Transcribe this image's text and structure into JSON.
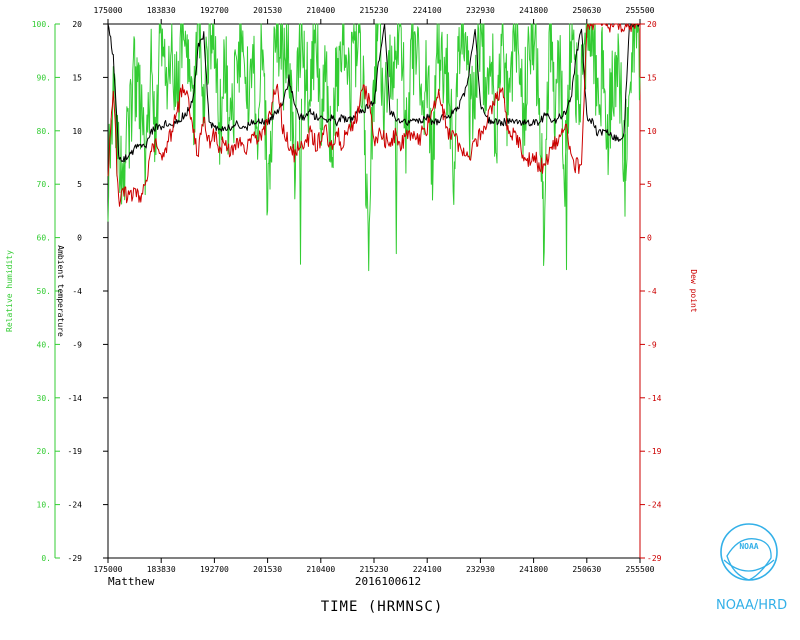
{
  "chart_data": {
    "type": "line",
    "storm_name": "Matthew",
    "date_label": "2016100612",
    "xlabel": "TIME (HRMNSC)",
    "x_ticks": [
      "175000",
      "183830",
      "192700",
      "201530",
      "210400",
      "215230",
      "224100",
      "232930",
      "241800",
      "250630",
      "255500"
    ],
    "xlim": [
      "175000",
      "255500"
    ],
    "axes": {
      "relative_humidity": {
        "label": "Relative humidity",
        "color": "#33cc33",
        "ticks": [
          "0.",
          "10.",
          "20.",
          "30.",
          "40.",
          "50.",
          "60.",
          "70.",
          "80.",
          "90.",
          "100."
        ],
        "range": [
          0,
          100
        ]
      },
      "ambient_temperature": {
        "label": "Ambient temperature",
        "color": "#000000",
        "ticks": [
          "-29",
          "-24",
          "-19",
          "-14",
          "-9",
          "-4",
          "0",
          "5",
          "10",
          "15",
          "20"
        ],
        "range": [
          -29,
          20
        ]
      },
      "dew_point": {
        "label": "Dew point",
        "color": "#cc0000",
        "ticks": [
          "-29",
          "-24",
          "-19",
          "-14",
          "-9",
          "-4",
          "0",
          "5",
          "10",
          "15",
          "20"
        ],
        "range": [
          -29,
          20
        ]
      }
    },
    "grid": false,
    "series": [
      {
        "name": "Relative humidity",
        "axis": "relative_humidity",
        "color": "#33cc33",
        "x_frac": [
          0,
          0.01,
          0.02,
          0.03,
          0.04,
          0.05,
          0.06,
          0.07,
          0.08,
          0.09,
          0.1,
          0.11,
          0.12,
          0.13,
          0.14,
          0.15,
          0.16,
          0.17,
          0.18,
          0.19,
          0.2,
          0.21,
          0.22,
          0.23,
          0.24,
          0.25,
          0.26,
          0.27,
          0.28,
          0.29,
          0.3,
          0.31,
          0.32,
          0.33,
          0.34,
          0.35,
          0.36,
          0.37,
          0.38,
          0.39,
          0.4,
          0.41,
          0.42,
          0.43,
          0.44,
          0.45,
          0.46,
          0.47,
          0.48,
          0.49,
          0.5,
          0.51,
          0.52,
          0.53,
          0.54,
          0.55,
          0.56,
          0.57,
          0.58,
          0.59,
          0.6,
          0.61,
          0.62,
          0.63,
          0.64,
          0.65,
          0.66,
          0.67,
          0.68,
          0.69,
          0.7,
          0.71,
          0.72,
          0.73,
          0.74,
          0.75,
          0.76,
          0.77,
          0.78,
          0.79,
          0.8,
          0.81,
          0.82,
          0.83,
          0.84,
          0.85,
          0.86,
          0.87,
          0.88,
          0.89,
          0.9,
          0.91,
          0.92,
          0.93,
          0.94,
          0.95,
          0.96,
          0.97,
          0.98,
          0.99,
          1.0
        ],
        "values": [
          72,
          88,
          76,
          70,
          82,
          90,
          85,
          75,
          92,
          80,
          100,
          88,
          95,
          85,
          100,
          92,
          80,
          100,
          86,
          95,
          100,
          82,
          92,
          78,
          88,
          100,
          85,
          96,
          80,
          100,
          65,
          88,
          100,
          92,
          95,
          70,
          100,
          90,
          85,
          100,
          82,
          95,
          75,
          90,
          100,
          85,
          92,
          100,
          88,
          58,
          90,
          100,
          82,
          95,
          88,
          100,
          80,
          92,
          100,
          85,
          90,
          75,
          100,
          88,
          92,
          70,
          95,
          100,
          82,
          90,
          100,
          88,
          95,
          78,
          100,
          85,
          92,
          100,
          80,
          95,
          100,
          88,
          60,
          100,
          85,
          92,
          70,
          100,
          88,
          90,
          95,
          100,
          85,
          92,
          80,
          88,
          95,
          72,
          85,
          100,
          90
        ],
        "extremes": [
          {
            "x_frac": 0.36,
            "value": 55
          },
          {
            "x_frac": 0.54,
            "value": 57
          },
          {
            "x_frac": 0.86,
            "value": 54
          },
          {
            "x_frac": 0.97,
            "value": 64
          }
        ]
      },
      {
        "name": "Ambient temperature",
        "axis": "ambient_temperature",
        "color": "#000000",
        "x_frac": [
          0,
          0.01,
          0.02,
          0.03,
          0.04,
          0.05,
          0.06,
          0.07,
          0.08,
          0.09,
          0.1,
          0.11,
          0.12,
          0.13,
          0.14,
          0.15,
          0.16,
          0.17,
          0.18,
          0.19,
          0.2,
          0.21,
          0.22,
          0.23,
          0.24,
          0.25,
          0.26,
          0.27,
          0.28,
          0.29,
          0.3,
          0.31,
          0.32,
          0.33,
          0.34,
          0.35,
          0.36,
          0.37,
          0.38,
          0.39,
          0.4,
          0.41,
          0.42,
          0.43,
          0.44,
          0.45,
          0.46,
          0.47,
          0.48,
          0.49,
          0.5,
          0.51,
          0.52,
          0.53,
          0.54,
          0.55,
          0.56,
          0.57,
          0.58,
          0.59,
          0.6,
          0.61,
          0.62,
          0.63,
          0.64,
          0.65,
          0.66,
          0.67,
          0.68,
          0.69,
          0.7,
          0.71,
          0.72,
          0.73,
          0.74,
          0.75,
          0.76,
          0.77,
          0.78,
          0.79,
          0.8,
          0.81,
          0.82,
          0.83,
          0.84,
          0.85,
          0.86,
          0.87,
          0.88,
          0.89,
          0.9,
          0.91,
          0.92,
          0.93,
          0.94,
          0.95,
          0.96,
          0.97,
          0.98,
          0.99,
          1.0
        ],
        "values": [
          20,
          17,
          8,
          7.5,
          8,
          8.5,
          9,
          8.5,
          10,
          10.5,
          10.5,
          11,
          10.5,
          11,
          11.5,
          12,
          13,
          18,
          19,
          11,
          10.5,
          10.5,
          10.5,
          10.5,
          11,
          10.5,
          10.5,
          11,
          11,
          11,
          11,
          11.5,
          12,
          13,
          15,
          13,
          11.5,
          11.5,
          12,
          11.5,
          11.5,
          11,
          11.5,
          11,
          11.5,
          11,
          11.5,
          12,
          12,
          12.5,
          13,
          17,
          20,
          12,
          11.5,
          11,
          11,
          11,
          11,
          11,
          11.5,
          11,
          11,
          11.5,
          11.5,
          12,
          12.5,
          13.5,
          16,
          19.5,
          12.5,
          11.5,
          11,
          11,
          11,
          11,
          11,
          11,
          11,
          11,
          11,
          11,
          11.5,
          11.5,
          11,
          11.5,
          12,
          13,
          17,
          19.5,
          11.5,
          11,
          10,
          10,
          10,
          9.5,
          9.5,
          10,
          20,
          20,
          20
        ]
      },
      {
        "name": "Dew point",
        "axis": "dew_point",
        "color": "#cc0000",
        "x_frac": [
          0,
          0.01,
          0.02,
          0.03,
          0.04,
          0.05,
          0.06,
          0.07,
          0.08,
          0.09,
          0.1,
          0.11,
          0.12,
          0.13,
          0.14,
          0.15,
          0.16,
          0.17,
          0.18,
          0.19,
          0.2,
          0.21,
          0.22,
          0.23,
          0.24,
          0.25,
          0.26,
          0.27,
          0.28,
          0.29,
          0.3,
          0.31,
          0.32,
          0.33,
          0.34,
          0.35,
          0.36,
          0.37,
          0.38,
          0.39,
          0.4,
          0.41,
          0.42,
          0.43,
          0.44,
          0.45,
          0.46,
          0.47,
          0.48,
          0.49,
          0.5,
          0.51,
          0.52,
          0.53,
          0.54,
          0.55,
          0.56,
          0.57,
          0.58,
          0.59,
          0.6,
          0.61,
          0.62,
          0.63,
          0.64,
          0.65,
          0.66,
          0.67,
          0.68,
          0.69,
          0.7,
          0.71,
          0.72,
          0.73,
          0.74,
          0.75,
          0.76,
          0.77,
          0.78,
          0.79,
          0.8,
          0.81,
          0.82,
          0.83,
          0.84,
          0.85,
          0.86,
          0.87,
          0.88,
          0.89,
          0.9,
          0.91,
          0.92,
          0.93,
          0.94,
          0.95,
          0.96,
          0.97,
          0.98,
          0.99,
          1.0
        ],
        "values": [
          6,
          14,
          3.5,
          4.5,
          4,
          4.5,
          4,
          5,
          8,
          9,
          8,
          9,
          10,
          12,
          14,
          13,
          10,
          8,
          12,
          9,
          10,
          8.5,
          9.5,
          8,
          9,
          9.5,
          8.5,
          10,
          9,
          10,
          11,
          13,
          14,
          10,
          9,
          8,
          9,
          8.5,
          10,
          9,
          9.5,
          10,
          9,
          10,
          9,
          10.5,
          11,
          12,
          14,
          13,
          9,
          10,
          9.5,
          9,
          10,
          9,
          9.5,
          10,
          9,
          10,
          10.5,
          12,
          14,
          12,
          10,
          9.5,
          9,
          8.5,
          8,
          9,
          10,
          11,
          12,
          13,
          14,
          11,
          10,
          9.5,
          8,
          7.5,
          8,
          7,
          7,
          8,
          9,
          10,
          11,
          7.5,
          7,
          7,
          20,
          20,
          20,
          20,
          20,
          20,
          20,
          20,
          20,
          20,
          20
        ]
      }
    ]
  },
  "logo": {
    "name": "noaa-logo",
    "text": "NOAA",
    "color": "#33b0e8"
  },
  "footer": {
    "agency": "NOAA/HRD"
  }
}
